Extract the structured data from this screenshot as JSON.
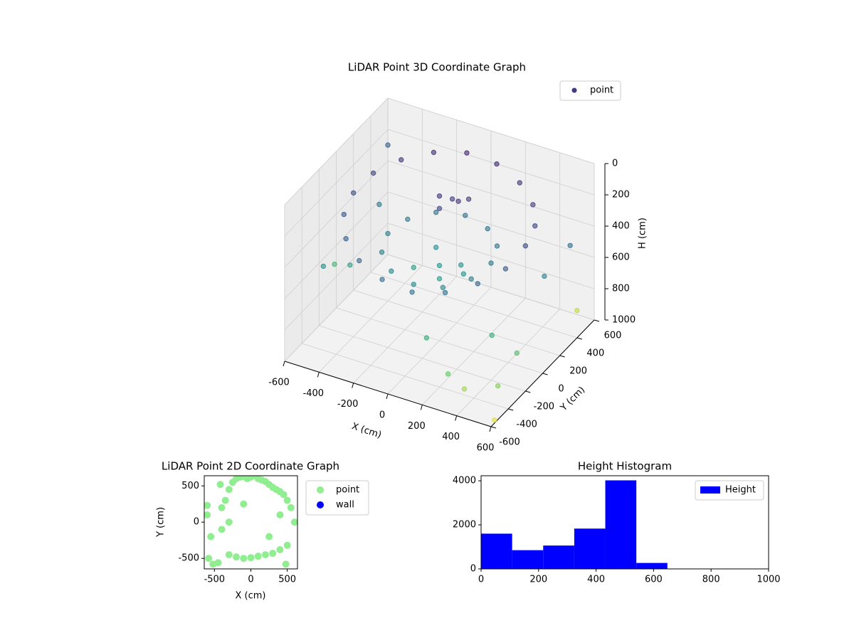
{
  "chart_data": [
    {
      "type": "scatter3d",
      "title": "LiDAR Point 3D Coordinate Graph",
      "xlabel": "X (cm)",
      "ylabel": "Y (cm)",
      "zlabel": "H (cm)",
      "xlim": [
        -600,
        600
      ],
      "ylim": [
        -600,
        600
      ],
      "zlim": [
        0,
        1000
      ],
      "z_inverted": true,
      "xticks": [
        -600,
        -400,
        -200,
        0,
        200,
        400,
        600
      ],
      "yticks": [
        -600,
        -400,
        -200,
        0,
        200,
        400,
        600
      ],
      "zticks": [
        0,
        200,
        400,
        600,
        800,
        1000
      ],
      "colormap": "viridis",
      "grid": true,
      "legend": "upper right",
      "series": [
        {
          "name": "point",
          "color": "#3e3a86",
          "x": [
            500,
            470,
            383,
            250,
            87,
            -87,
            -250,
            -383,
            -470,
            -500,
            -470,
            -383,
            -250,
            -87,
            87,
            250,
            383,
            470,
            300,
            260,
            150,
            0,
            -150,
            -260,
            -300,
            -260,
            -150,
            0,
            150,
            260,
            0,
            100,
            -80,
            50,
            -120,
            150,
            -50,
            0,
            50,
            -30,
            80,
            -600,
            600,
            550,
            620,
            590,
            -560,
            -500,
            200,
            350,
            420,
            560,
            610,
            -450,
            -420,
            480
          ],
          "y": [
            0,
            171,
            321,
            433,
            492,
            492,
            433,
            321,
            171,
            0,
            -171,
            -321,
            -433,
            -492,
            -492,
            -433,
            -321,
            -171,
            0,
            150,
            260,
            300,
            260,
            150,
            0,
            -150,
            -260,
            -300,
            -260,
            -150,
            0,
            50,
            120,
            -100,
            -60,
            -20,
            100,
            150,
            120,
            60,
            180,
            600,
            -300,
            500,
            -600,
            -500,
            -100,
            -350,
            -550,
            -600,
            -550,
            100,
            300,
            200,
            -200,
            -350
          ],
          "z": [
            220,
            200,
            180,
            150,
            120,
            110,
            130,
            160,
            190,
            230,
            260,
            300,
            330,
            360,
            380,
            360,
            320,
            280,
            400,
            390,
            380,
            370,
            380,
            400,
            420,
            440,
            460,
            470,
            460,
            430,
            520,
            510,
            500,
            530,
            540,
            510,
            150,
            180,
            160,
            200,
            170,
            300,
            700,
            900,
            950,
            800,
            650,
            500,
            600,
            750,
            850,
            450,
            350,
            400,
            550,
            600
          ]
        }
      ]
    },
    {
      "type": "scatter",
      "title": "LiDAR Point 2D Coordinate Graph",
      "xlabel": "X (cm)",
      "ylabel": "Y (cm)",
      "xlim": [
        -640,
        640
      ],
      "ylim": [
        -645,
        640
      ],
      "xticks": [
        -500,
        0,
        500
      ],
      "yticks": [
        -500,
        0,
        500
      ],
      "legend": "outside right",
      "series": [
        {
          "name": "point",
          "color": "#90ee90",
          "x": [
            -600,
            -580,
            -520,
            -450,
            -420,
            -400,
            -350,
            -300,
            -250,
            -200,
            -150,
            -100,
            -50,
            0,
            50,
            100,
            150,
            200,
            250,
            300,
            350,
            400,
            450,
            500,
            550,
            600,
            -300,
            -200,
            -100,
            0,
            100,
            200,
            300,
            400,
            500,
            -400,
            -300,
            400,
            480,
            -550,
            -600,
            250,
            -100
          ],
          "y": [
            230,
            -500,
            -580,
            -560,
            520,
            200,
            300,
            450,
            550,
            600,
            620,
            630,
            600,
            620,
            640,
            600,
            580,
            560,
            520,
            480,
            450,
            420,
            380,
            300,
            200,
            0,
            -450,
            -480,
            -500,
            -490,
            -470,
            -450,
            -430,
            -380,
            -320,
            -100,
            0,
            100,
            -580,
            -200,
            100,
            -200,
            250
          ]
        },
        {
          "name": "wall",
          "color": "#0000ff",
          "x": [],
          "y": []
        }
      ]
    },
    {
      "type": "histogram",
      "title": "Height Histogram",
      "xlim": [
        0,
        1000
      ],
      "ylim": [
        0,
        4230
      ],
      "xticks": [
        0,
        200,
        400,
        600,
        800,
        1000
      ],
      "yticks": [
        0,
        2000,
        4000
      ],
      "legend": "upper right",
      "bins": [
        0,
        108,
        216,
        324,
        432,
        540,
        648
      ],
      "series": [
        {
          "name": "Height",
          "color": "#0000ff",
          "values": [
            1600,
            850,
            1060,
            1830,
            4020,
            270
          ]
        }
      ]
    }
  ]
}
